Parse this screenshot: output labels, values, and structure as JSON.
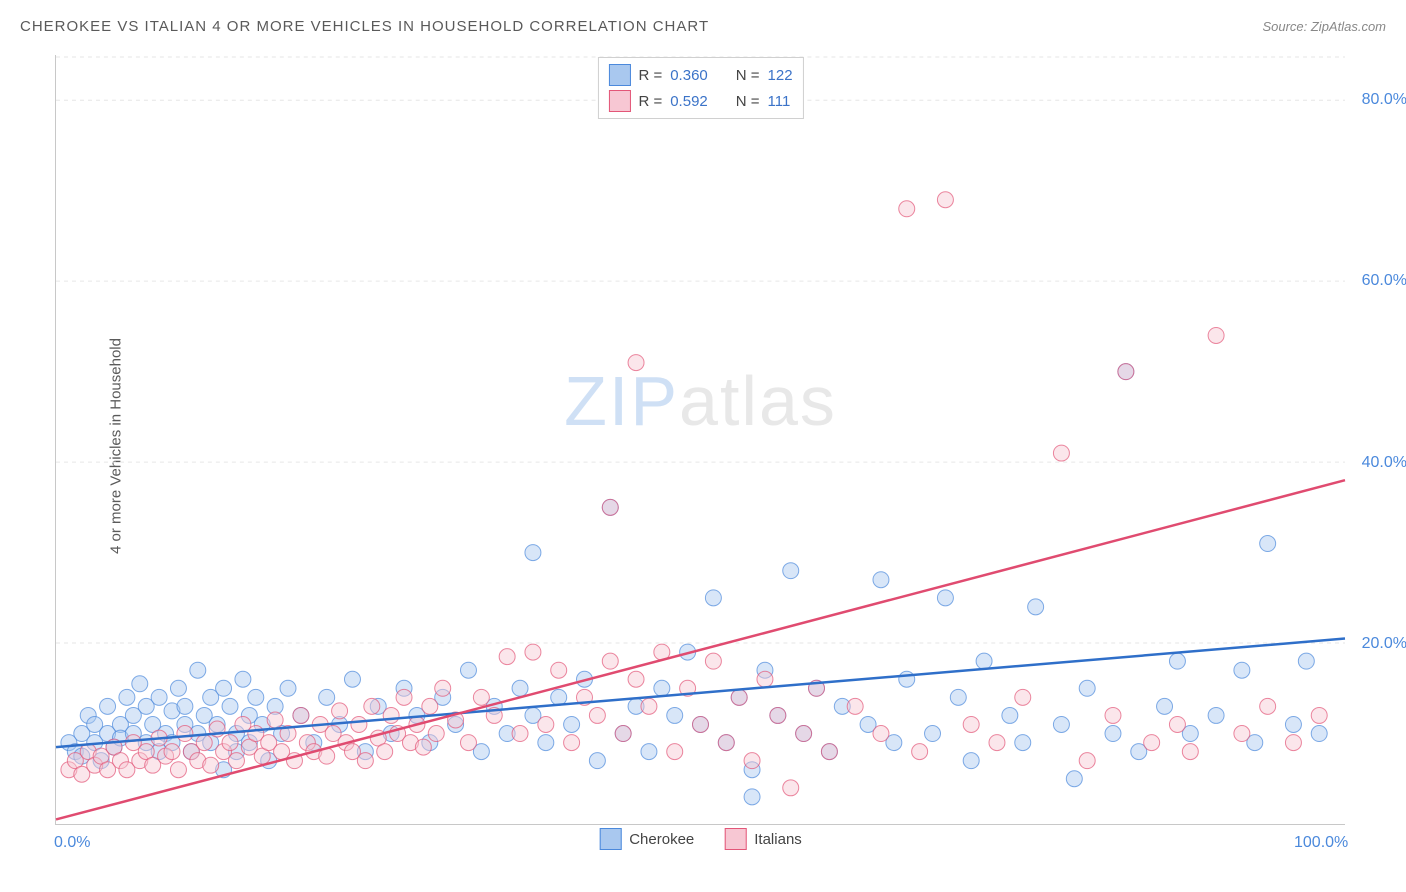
{
  "title": "CHEROKEE VS ITALIAN 4 OR MORE VEHICLES IN HOUSEHOLD CORRELATION CHART",
  "source_label": "Source: ZipAtlas.com",
  "y_axis_label": "4 or more Vehicles in Household",
  "watermark_a": "ZIP",
  "watermark_b": "atlas",
  "chart": {
    "type": "scatter",
    "xlim": [
      0,
      100
    ],
    "ylim": [
      0,
      85
    ],
    "x_ticks": [
      {
        "v": 0,
        "label": "0.0%"
      },
      {
        "v": 100,
        "label": "100.0%"
      }
    ],
    "y_ticks": [
      {
        "v": 20,
        "label": "20.0%"
      },
      {
        "v": 40,
        "label": "40.0%"
      },
      {
        "v": 60,
        "label": "60.0%"
      },
      {
        "v": 80,
        "label": "80.0%"
      }
    ],
    "grid_color": "#e6e6e6",
    "axis_color": "#c8c8c8",
    "background_color": "#ffffff",
    "marker_radius": 8,
    "marker_opacity": 0.45,
    "line_width": 2.5,
    "series": [
      {
        "name": "Cherokee",
        "fill": "#a9c8ef",
        "stroke": "#4b89dc",
        "trend_color": "#2f6fc9",
        "trend": {
          "x1": 0,
          "y1": 8.5,
          "x2": 100,
          "y2": 20.5
        },
        "R": "0.360",
        "N": "122",
        "points": [
          [
            1,
            9
          ],
          [
            1.5,
            8
          ],
          [
            2,
            10
          ],
          [
            2,
            7.5
          ],
          [
            2.5,
            12
          ],
          [
            3,
            9
          ],
          [
            3,
            11
          ],
          [
            3.5,
            7
          ],
          [
            4,
            10
          ],
          [
            4,
            13
          ],
          [
            4.5,
            8.5
          ],
          [
            5,
            11
          ],
          [
            5,
            9.5
          ],
          [
            5.5,
            14
          ],
          [
            6,
            10
          ],
          [
            6,
            12
          ],
          [
            6.5,
            15.5
          ],
          [
            7,
            9
          ],
          [
            7,
            13
          ],
          [
            7.5,
            11
          ],
          [
            8,
            8
          ],
          [
            8,
            14
          ],
          [
            8.5,
            10
          ],
          [
            9,
            12.5
          ],
          [
            9,
            9
          ],
          [
            9.5,
            15
          ],
          [
            10,
            11
          ],
          [
            10,
            13
          ],
          [
            10.5,
            8
          ],
          [
            11,
            17
          ],
          [
            11,
            10
          ],
          [
            11.5,
            12
          ],
          [
            12,
            14
          ],
          [
            12,
            9
          ],
          [
            12.5,
            11
          ],
          [
            13,
            15
          ],
          [
            13,
            6
          ],
          [
            13.5,
            13
          ],
          [
            14,
            10
          ],
          [
            14,
            8
          ],
          [
            14.5,
            16
          ],
          [
            15,
            12
          ],
          [
            15,
            9
          ],
          [
            15.5,
            14
          ],
          [
            16,
            11
          ],
          [
            16.5,
            7
          ],
          [
            17,
            13
          ],
          [
            17.5,
            10
          ],
          [
            18,
            15
          ],
          [
            19,
            12
          ],
          [
            20,
            9
          ],
          [
            21,
            14
          ],
          [
            22,
            11
          ],
          [
            23,
            16
          ],
          [
            24,
            8
          ],
          [
            25,
            13
          ],
          [
            26,
            10
          ],
          [
            27,
            15
          ],
          [
            28,
            12
          ],
          [
            29,
            9
          ],
          [
            30,
            14
          ],
          [
            31,
            11
          ],
          [
            32,
            17
          ],
          [
            33,
            8
          ],
          [
            34,
            13
          ],
          [
            35,
            10
          ],
          [
            36,
            15
          ],
          [
            37,
            12
          ],
          [
            37,
            30
          ],
          [
            38,
            9
          ],
          [
            39,
            14
          ],
          [
            40,
            11
          ],
          [
            41,
            16
          ],
          [
            42,
            7
          ],
          [
            43,
            35
          ],
          [
            44,
            10
          ],
          [
            45,
            13
          ],
          [
            46,
            8
          ],
          [
            47,
            15
          ],
          [
            48,
            12
          ],
          [
            49,
            19
          ],
          [
            50,
            11
          ],
          [
            51,
            25
          ],
          [
            52,
            9
          ],
          [
            53,
            14
          ],
          [
            54,
            6
          ],
          [
            55,
            17
          ],
          [
            56,
            12
          ],
          [
            57,
            28
          ],
          [
            58,
            10
          ],
          [
            59,
            15
          ],
          [
            60,
            8
          ],
          [
            61,
            13
          ],
          [
            63,
            11
          ],
          [
            64,
            27
          ],
          [
            65,
            9
          ],
          [
            66,
            16
          ],
          [
            68,
            10
          ],
          [
            69,
            25
          ],
          [
            70,
            14
          ],
          [
            71,
            7
          ],
          [
            72,
            18
          ],
          [
            74,
            12
          ],
          [
            75,
            9
          ],
          [
            76,
            24
          ],
          [
            78,
            11
          ],
          [
            79,
            5
          ],
          [
            80,
            15
          ],
          [
            82,
            10
          ],
          [
            83,
            50
          ],
          [
            84,
            8
          ],
          [
            86,
            13
          ],
          [
            87,
            18
          ],
          [
            88,
            10
          ],
          [
            90,
            12
          ],
          [
            92,
            17
          ],
          [
            93,
            9
          ],
          [
            94,
            31
          ],
          [
            96,
            11
          ],
          [
            97,
            18
          ],
          [
            98,
            10
          ],
          [
            54,
            3
          ]
        ]
      },
      {
        "name": "Italians",
        "fill": "#f7c7d3",
        "stroke": "#e35678",
        "trend_color": "#e04b70",
        "trend": {
          "x1": 0,
          "y1": 0.5,
          "x2": 100,
          "y2": 38
        },
        "R": "0.592",
        "N": "111",
        "points": [
          [
            1,
            6
          ],
          [
            1.5,
            7
          ],
          [
            2,
            5.5
          ],
          [
            2.5,
            8
          ],
          [
            3,
            6.5
          ],
          [
            3.5,
            7.5
          ],
          [
            4,
            6
          ],
          [
            4.5,
            8.5
          ],
          [
            5,
            7
          ],
          [
            5.5,
            6
          ],
          [
            6,
            9
          ],
          [
            6.5,
            7
          ],
          [
            7,
            8
          ],
          [
            7.5,
            6.5
          ],
          [
            8,
            9.5
          ],
          [
            8.5,
            7.5
          ],
          [
            9,
            8
          ],
          [
            9.5,
            6
          ],
          [
            10,
            10
          ],
          [
            10.5,
            8
          ],
          [
            11,
            7
          ],
          [
            11.5,
            9
          ],
          [
            12,
            6.5
          ],
          [
            12.5,
            10.5
          ],
          [
            13,
            8
          ],
          [
            13.5,
            9
          ],
          [
            14,
            7
          ],
          [
            14.5,
            11
          ],
          [
            15,
            8.5
          ],
          [
            15.5,
            10
          ],
          [
            16,
            7.5
          ],
          [
            16.5,
            9
          ],
          [
            17,
            11.5
          ],
          [
            17.5,
            8
          ],
          [
            18,
            10
          ],
          [
            18.5,
            7
          ],
          [
            19,
            12
          ],
          [
            19.5,
            9
          ],
          [
            20,
            8
          ],
          [
            20.5,
            11
          ],
          [
            21,
            7.5
          ],
          [
            21.5,
            10
          ],
          [
            22,
            12.5
          ],
          [
            22.5,
            9
          ],
          [
            23,
            8
          ],
          [
            23.5,
            11
          ],
          [
            24,
            7
          ],
          [
            24.5,
            13
          ],
          [
            25,
            9.5
          ],
          [
            25.5,
            8
          ],
          [
            26,
            12
          ],
          [
            26.5,
            10
          ],
          [
            27,
            14
          ],
          [
            27.5,
            9
          ],
          [
            28,
            11
          ],
          [
            28.5,
            8.5
          ],
          [
            29,
            13
          ],
          [
            29.5,
            10
          ],
          [
            30,
            15
          ],
          [
            31,
            11.5
          ],
          [
            32,
            9
          ],
          [
            33,
            14
          ],
          [
            34,
            12
          ],
          [
            35,
            18.5
          ],
          [
            36,
            10
          ],
          [
            37,
            19
          ],
          [
            38,
            11
          ],
          [
            39,
            17
          ],
          [
            40,
            9
          ],
          [
            41,
            14
          ],
          [
            42,
            12
          ],
          [
            43,
            18
          ],
          [
            43,
            35
          ],
          [
            44,
            10
          ],
          [
            45,
            51
          ],
          [
            45,
            16
          ],
          [
            46,
            13
          ],
          [
            47,
            19
          ],
          [
            48,
            8
          ],
          [
            49,
            15
          ],
          [
            50,
            11
          ],
          [
            51,
            18
          ],
          [
            52,
            9
          ],
          [
            53,
            14
          ],
          [
            54,
            7
          ],
          [
            55,
            16
          ],
          [
            56,
            12
          ],
          [
            57,
            4
          ],
          [
            58,
            10
          ],
          [
            59,
            15
          ],
          [
            60,
            8
          ],
          [
            62,
            13
          ],
          [
            64,
            10
          ],
          [
            66,
            68
          ],
          [
            67,
            8
          ],
          [
            69,
            69
          ],
          [
            71,
            11
          ],
          [
            73,
            9
          ],
          [
            75,
            14
          ],
          [
            78,
            41
          ],
          [
            80,
            7
          ],
          [
            82,
            12
          ],
          [
            83,
            50
          ],
          [
            85,
            9
          ],
          [
            87,
            11
          ],
          [
            88,
            8
          ],
          [
            90,
            54
          ],
          [
            92,
            10
          ],
          [
            94,
            13
          ],
          [
            96,
            9
          ],
          [
            98,
            12
          ]
        ]
      }
    ],
    "legend_top": {
      "r_label": "R =",
      "n_label": "N ="
    },
    "legend_bottom_labels": [
      "Cherokee",
      "Italians"
    ]
  }
}
